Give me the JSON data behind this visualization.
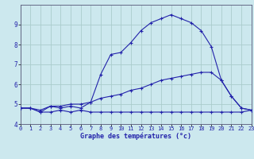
{
  "title": "Graphe des températures (°c)",
  "background_color": "#cce8ee",
  "grid_color": "#aacccc",
  "line_color": "#2222aa",
  "xlim": [
    0,
    23
  ],
  "ylim": [
    4.0,
    10.0
  ],
  "xticks": [
    0,
    1,
    2,
    3,
    4,
    5,
    6,
    7,
    8,
    9,
    10,
    11,
    12,
    13,
    14,
    15,
    16,
    17,
    18,
    19,
    20,
    21,
    22,
    23
  ],
  "yticks": [
    4,
    5,
    6,
    7,
    8,
    9
  ],
  "series1_x": [
    0,
    1,
    2,
    3,
    4,
    5,
    6,
    7,
    8,
    9,
    10,
    11,
    12,
    13,
    14,
    15,
    16,
    17,
    18,
    19,
    20,
    21,
    22,
    23
  ],
  "series1_y": [
    4.8,
    4.8,
    4.6,
    4.6,
    4.7,
    4.6,
    4.7,
    4.6,
    4.6,
    4.6,
    4.6,
    4.6,
    4.6,
    4.6,
    4.6,
    4.6,
    4.6,
    4.6,
    4.6,
    4.6,
    4.6,
    4.6,
    4.6,
    4.7
  ],
  "series2_x": [
    0,
    1,
    2,
    3,
    4,
    5,
    6,
    7,
    8,
    9,
    10,
    11,
    12,
    13,
    14,
    15,
    16,
    17,
    18,
    19,
    20,
    21,
    22,
    23
  ],
  "series2_y": [
    4.8,
    4.8,
    4.7,
    4.9,
    4.9,
    5.0,
    5.0,
    5.1,
    5.3,
    5.4,
    5.5,
    5.7,
    5.8,
    6.0,
    6.2,
    6.3,
    6.4,
    6.5,
    6.6,
    6.6,
    6.2,
    5.4,
    4.8,
    4.7
  ],
  "series3_x": [
    0,
    1,
    2,
    3,
    4,
    5,
    6,
    7,
    8,
    9,
    10,
    11,
    12,
    13,
    14,
    15,
    16,
    17,
    18,
    19,
    20,
    21,
    22,
    23
  ],
  "series3_y": [
    4.8,
    4.8,
    4.6,
    4.9,
    4.8,
    4.9,
    4.8,
    5.1,
    6.5,
    7.5,
    7.6,
    8.1,
    8.7,
    9.1,
    9.3,
    9.5,
    9.3,
    9.1,
    8.7,
    7.9,
    6.2,
    5.4,
    4.8,
    4.7
  ]
}
